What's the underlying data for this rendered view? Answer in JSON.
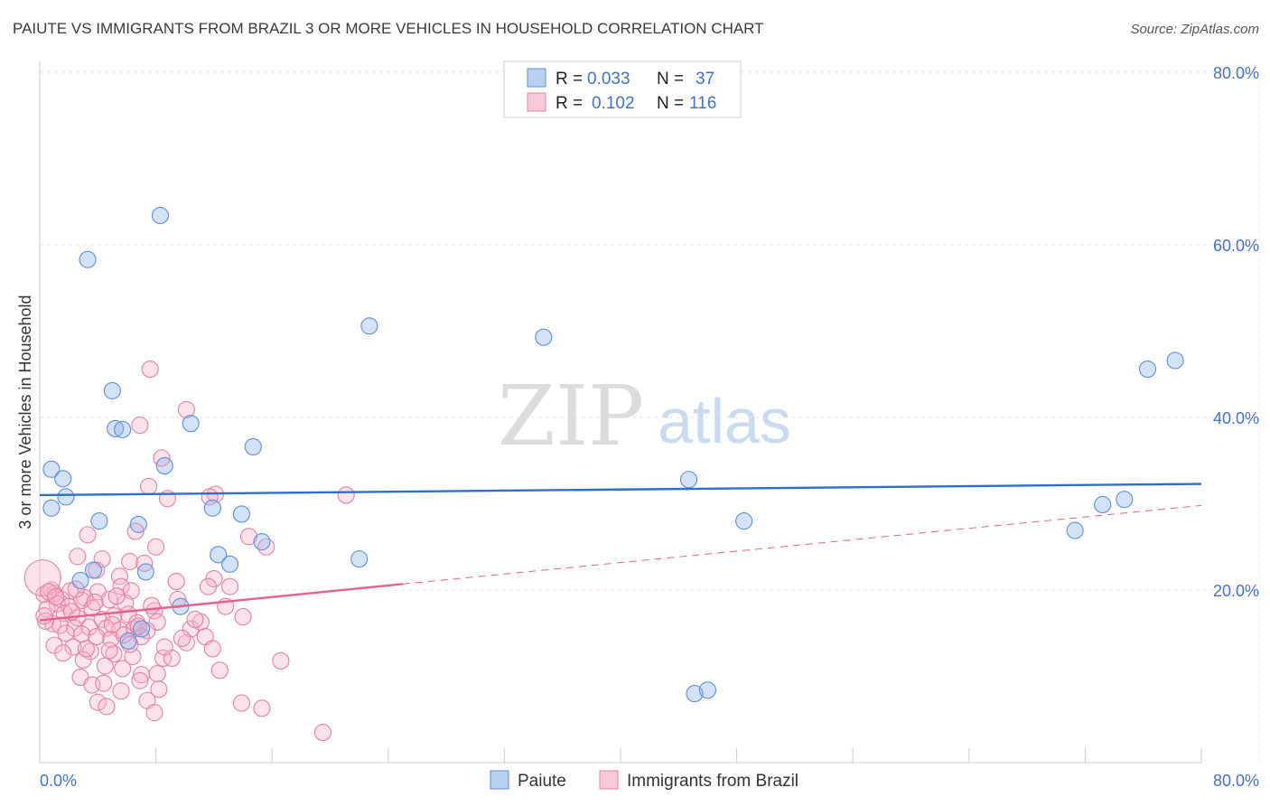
{
  "title": "PAIUTE VS IMMIGRANTS FROM BRAZIL 3 OR MORE VEHICLES IN HOUSEHOLD CORRELATION CHART",
  "source": "Source: ZipAtlas.com",
  "watermark": {
    "zip": "ZIP",
    "atlas": "atlas"
  },
  "chart_data": {
    "type": "scatter",
    "xlabel": "",
    "ylabel": "3 or more Vehicles in Household",
    "xlim": [
      0,
      80
    ],
    "ylim": [
      0,
      80
    ],
    "x_tick_labels": [
      "0.0%",
      "80.0%"
    ],
    "y_ticks": [
      20,
      40,
      60,
      80
    ],
    "y_tick_labels": [
      "20.0%",
      "40.0%",
      "60.0%",
      "80.0%"
    ],
    "grid": true,
    "legend_position": "top-center",
    "stats": [
      {
        "r_label": "R = ",
        "r": "0.033",
        "n_label": "N = ",
        "n": "37"
      },
      {
        "r_label": "R = ",
        "r": "0.102",
        "n_label": "N = ",
        "n": "116"
      }
    ],
    "series": [
      {
        "name": "Paiute",
        "color": "#8fb4ea",
        "stroke": "#5b8fd8",
        "trend_color": "#2f6fcc",
        "trend": {
          "x0": 0,
          "y0": 31.0,
          "x1": 80,
          "y1": 32.3
        },
        "points": [
          [
            8.3,
            63.4
          ],
          [
            3.3,
            58.3
          ],
          [
            22.7,
            50.6
          ],
          [
            34.7,
            49.3
          ],
          [
            76.3,
            45.6
          ],
          [
            78.2,
            46.6
          ],
          [
            5.0,
            43.1
          ],
          [
            5.2,
            38.7
          ],
          [
            5.7,
            38.6
          ],
          [
            10.4,
            39.3
          ],
          [
            14.7,
            36.6
          ],
          [
            0.8,
            34.0
          ],
          [
            1.6,
            32.9
          ],
          [
            8.6,
            34.4
          ],
          [
            44.7,
            32.8
          ],
          [
            1.8,
            30.8
          ],
          [
            0.8,
            29.5
          ],
          [
            74.7,
            30.5
          ],
          [
            73.2,
            29.9
          ],
          [
            11.9,
            29.5
          ],
          [
            13.9,
            28.8
          ],
          [
            4.1,
            28.0
          ],
          [
            6.8,
            27.6
          ],
          [
            48.5,
            28.0
          ],
          [
            71.3,
            26.9
          ],
          [
            15.3,
            25.6
          ],
          [
            12.3,
            24.1
          ],
          [
            13.1,
            23.0
          ],
          [
            22.0,
            23.6
          ],
          [
            3.7,
            22.3
          ],
          [
            7.3,
            22.1
          ],
          [
            2.8,
            21.1
          ],
          [
            9.7,
            18.1
          ],
          [
            6.1,
            14.1
          ],
          [
            45.1,
            8.0
          ],
          [
            46.0,
            8.4
          ],
          [
            7.0,
            15.5
          ]
        ]
      },
      {
        "name": "Immigrants from Brazil",
        "color": "#f7b6cb",
        "stroke": "#e87fa2",
        "trend_color": "#e8608c",
        "trend": {
          "x0": 0,
          "y0": 16.5,
          "x1": 25,
          "y1": 20.7
        },
        "trend_dashed": {
          "x0": 25,
          "y0": 20.7,
          "x1": 80,
          "y1": 29.8
        },
        "points": [
          [
            7.6,
            45.6
          ],
          [
            10.1,
            40.9
          ],
          [
            6.9,
            39.1
          ],
          [
            8.4,
            35.3
          ],
          [
            7.5,
            32.0
          ],
          [
            12.1,
            31.1
          ],
          [
            21.1,
            31.0
          ],
          [
            8.8,
            30.6
          ],
          [
            11.7,
            30.8
          ],
          [
            6.6,
            26.8
          ],
          [
            3.3,
            26.4
          ],
          [
            14.4,
            26.2
          ],
          [
            8.0,
            25.0
          ],
          [
            15.6,
            25.0
          ],
          [
            4.3,
            23.6
          ],
          [
            6.2,
            23.3
          ],
          [
            2.6,
            23.9
          ],
          [
            7.2,
            23.1
          ],
          [
            5.5,
            21.6
          ],
          [
            3.9,
            22.3
          ],
          [
            12.0,
            21.3
          ],
          [
            9.4,
            21.0
          ],
          [
            11.6,
            20.4
          ],
          [
            13.1,
            20.4
          ],
          [
            4.0,
            19.8
          ],
          [
            5.6,
            20.4
          ],
          [
            1.0,
            19.6
          ],
          [
            2.1,
            19.9
          ],
          [
            0.3,
            19.5
          ],
          [
            0.8,
            20.0
          ],
          [
            6.3,
            19.9
          ],
          [
            3.1,
            19.1
          ],
          [
            1.5,
            18.9
          ],
          [
            2.9,
            18.8
          ],
          [
            4.8,
            18.9
          ],
          [
            5.9,
            18.5
          ],
          [
            1.2,
            18.4
          ],
          [
            2.0,
            18.1
          ],
          [
            3.6,
            17.9
          ],
          [
            0.5,
            17.8
          ],
          [
            6.1,
            17.2
          ],
          [
            7.9,
            17.6
          ],
          [
            1.7,
            17.3
          ],
          [
            2.6,
            16.8
          ],
          [
            4.3,
            16.6
          ],
          [
            5.1,
            17.0
          ],
          [
            6.7,
            16.2
          ],
          [
            8.1,
            16.3
          ],
          [
            0.9,
            16.1
          ],
          [
            1.4,
            15.9
          ],
          [
            2.4,
            15.6
          ],
          [
            3.4,
            15.7
          ],
          [
            4.6,
            15.6
          ],
          [
            5.5,
            15.4
          ],
          [
            6.5,
            15.5
          ],
          [
            7.4,
            15.3
          ],
          [
            10.4,
            15.5
          ],
          [
            11.1,
            16.3
          ],
          [
            0.4,
            16.4
          ],
          [
            2.9,
            14.9
          ],
          [
            3.9,
            14.6
          ],
          [
            4.9,
            14.3
          ],
          [
            5.8,
            14.8
          ],
          [
            7.0,
            14.6
          ],
          [
            11.4,
            14.6
          ],
          [
            10.1,
            13.9
          ],
          [
            1.0,
            13.6
          ],
          [
            2.3,
            13.4
          ],
          [
            3.5,
            12.9
          ],
          [
            5.1,
            12.6
          ],
          [
            6.4,
            12.3
          ],
          [
            8.5,
            12.1
          ],
          [
            14.0,
            16.9
          ],
          [
            3.0,
            11.9
          ],
          [
            4.5,
            11.2
          ],
          [
            5.7,
            10.9
          ],
          [
            7.0,
            10.2
          ],
          [
            8.1,
            10.3
          ],
          [
            12.4,
            10.7
          ],
          [
            2.8,
            9.9
          ],
          [
            3.6,
            9.0
          ],
          [
            4.4,
            9.2
          ],
          [
            5.6,
            8.3
          ],
          [
            6.9,
            9.5
          ],
          [
            8.2,
            8.5
          ],
          [
            4.0,
            7.0
          ],
          [
            4.6,
            6.5
          ],
          [
            7.4,
            7.2
          ],
          [
            7.9,
            5.8
          ],
          [
            13.9,
            6.9
          ],
          [
            15.3,
            6.3
          ],
          [
            19.5,
            3.5
          ],
          [
            16.6,
            11.8
          ],
          [
            0.2,
            21.4
          ],
          [
            0.6,
            19.8
          ],
          [
            9.1,
            12.1
          ],
          [
            2.2,
            17.5
          ],
          [
            5.3,
            19.3
          ],
          [
            8.6,
            13.4
          ],
          [
            12.8,
            18.1
          ],
          [
            1.8,
            15.0
          ],
          [
            3.2,
            13.2
          ],
          [
            4.8,
            13.0
          ],
          [
            6.2,
            13.7
          ],
          [
            9.5,
            18.9
          ],
          [
            10.7,
            16.6
          ],
          [
            0.3,
            17.0
          ],
          [
            1.1,
            19.2
          ],
          [
            2.5,
            20.1
          ],
          [
            3.8,
            18.6
          ],
          [
            5.0,
            16.0
          ],
          [
            6.8,
            15.8
          ],
          [
            7.7,
            18.2
          ],
          [
            9.8,
            14.4
          ],
          [
            11.9,
            13.2
          ],
          [
            1.6,
            12.7
          ]
        ]
      }
    ]
  },
  "bottom_legend": [
    "Paiute",
    "Immigrants from Brazil"
  ]
}
